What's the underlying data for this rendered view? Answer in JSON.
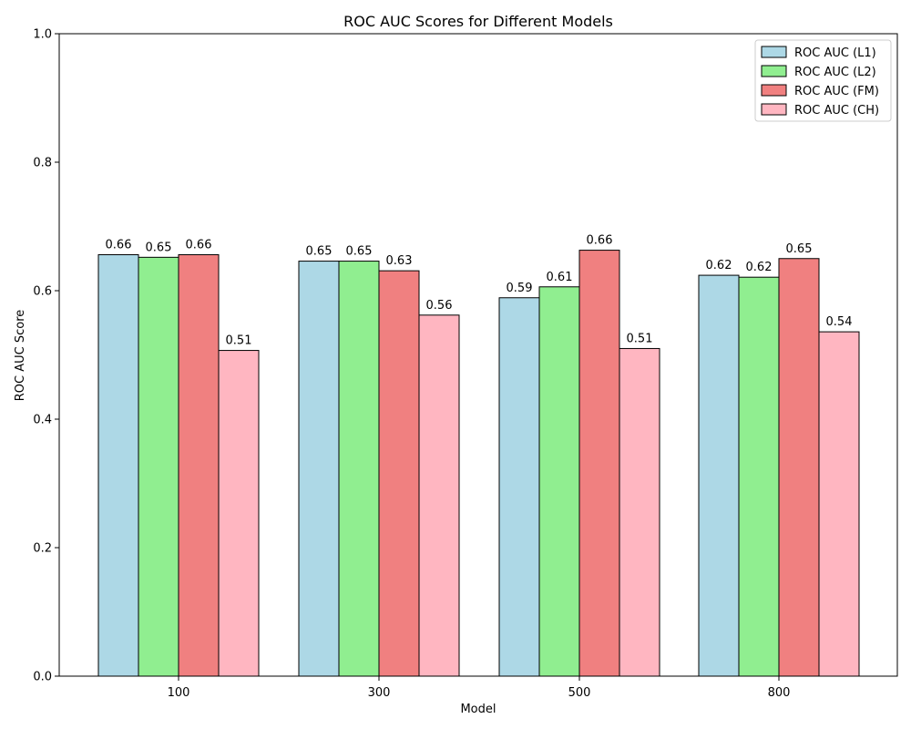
{
  "chart_data": {
    "type": "bar",
    "title": "ROC AUC Scores for Different Models",
    "xlabel": "Model",
    "ylabel": "ROC AUC Score",
    "categories": [
      "100",
      "300",
      "500",
      "800"
    ],
    "ylim": [
      0,
      1.0
    ],
    "yticks": [
      "0.0",
      "0.2",
      "0.4",
      "0.6",
      "0.8",
      "1.0"
    ],
    "legend_position": "top-right",
    "grid": false,
    "series": [
      {
        "name": "ROC AUC (L1)",
        "color": "#add8e6",
        "values": [
          0.656,
          0.646,
          0.589,
          0.624
        ],
        "labels": [
          "0.66",
          "0.65",
          "0.59",
          "0.62"
        ]
      },
      {
        "name": "ROC AUC (L2)",
        "color": "#90ee90",
        "values": [
          0.652,
          0.646,
          0.606,
          0.621
        ],
        "labels": [
          "0.65",
          "0.65",
          "0.61",
          "0.62"
        ]
      },
      {
        "name": "ROC AUC (FM)",
        "color": "#f08080",
        "values": [
          0.656,
          0.631,
          0.663,
          0.65
        ],
        "labels": [
          "0.66",
          "0.63",
          "0.66",
          "0.65"
        ]
      },
      {
        "name": "ROC AUC (CH)",
        "color": "#ffb6c1",
        "values": [
          0.507,
          0.562,
          0.51,
          0.536
        ],
        "labels": [
          "0.51",
          "0.56",
          "0.51",
          "0.54"
        ]
      }
    ]
  }
}
